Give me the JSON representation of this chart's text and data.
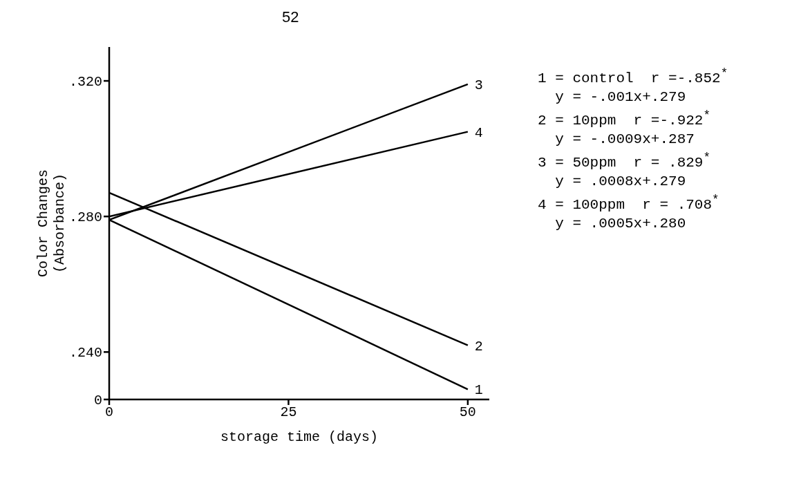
{
  "chart_data": {
    "type": "line",
    "title": "52",
    "xlabel": "storage time (days)",
    "ylabel": "Color Changes\n(Absorbance)",
    "x": [
      0,
      50
    ],
    "series": [
      {
        "name": "1",
        "color": "#000000",
        "values": [
          0.279,
          0.229
        ]
      },
      {
        "name": "2",
        "color": "#000000",
        "values": [
          0.287,
          0.242
        ]
      },
      {
        "name": "3",
        "color": "#000000",
        "values": [
          0.279,
          0.319
        ]
      },
      {
        "name": "4",
        "color": "#000000",
        "values": [
          0.28,
          0.305
        ]
      }
    ],
    "xlim": [
      0,
      53
    ],
    "xticks": [
      0,
      25,
      50
    ],
    "ylim": [
      0.226,
      0.33
    ],
    "yticks": [
      {
        "value": 0.226,
        "label": "0"
      },
      {
        "value": 0.24,
        "label": ".240"
      },
      {
        "value": 0.28,
        "label": ".280"
      },
      {
        "value": 0.32,
        "label": ".320"
      }
    ],
    "grid": false,
    "legend": false,
    "marker": "none",
    "line_style": "solid",
    "annotations": [
      "1 = control  r =-.852$^{*}$",
      "  y = -.001x+.279",
      "2 = 10ppm  r =-.922$^{*}$",
      "  y = -.0009x+.287",
      "3 = 50ppm  r = .829$^{*}$",
      "  y = .0008x+.279",
      "4 = 100ppm  r = .708$^{*}$",
      "  y = .0005x+.280"
    ]
  }
}
